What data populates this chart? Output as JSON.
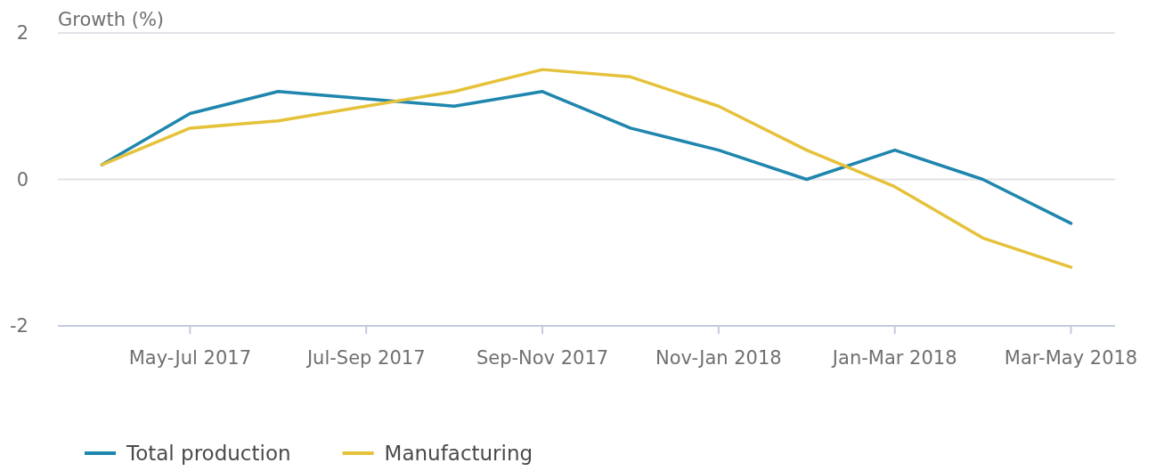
{
  "chart_data": {
    "type": "line",
    "ylabel": "Growth (%)",
    "categories": [
      null,
      "May-Jul 2017",
      null,
      "Jul-Sep 2017",
      null,
      "Sep-Nov 2017",
      null,
      "Nov-Jan 2018",
      null,
      "Jan-Mar 2018",
      null,
      "Mar-May 2018"
    ],
    "series": [
      {
        "name": "Total production",
        "color": "#1f86ad",
        "values": [
          0.2,
          0.9,
          1.2,
          1.1,
          1.0,
          1.2,
          0.7,
          0.4,
          0.0,
          0.4,
          0.0,
          -0.6
        ]
      },
      {
        "name": "Manufacturing",
        "color": "#e5c23a",
        "values": [
          0.2,
          0.7,
          0.8,
          1.0,
          1.2,
          1.5,
          1.4,
          1.0,
          0.4,
          -0.1,
          -0.8,
          -1.2
        ]
      }
    ],
    "ylim": [
      -2,
      2
    ],
    "yticks": [
      -2,
      0,
      2
    ],
    "grid": "y",
    "legend": "bottom left",
    "marker": "none",
    "line_style": "solid"
  }
}
